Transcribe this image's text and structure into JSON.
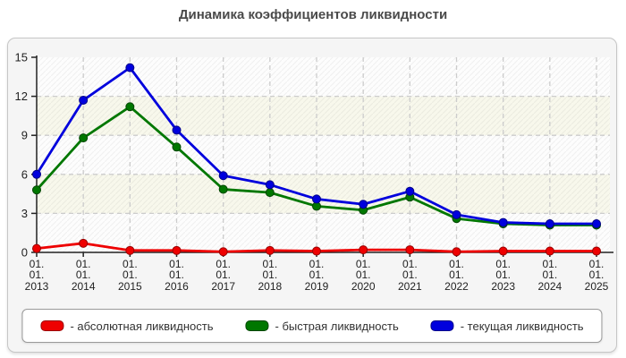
{
  "title": "Динамика коэффициентов ликвидности",
  "chart_data": {
    "type": "line",
    "x_tick_prefix_lines": [
      "01.",
      "01."
    ],
    "years": [
      "2013",
      "2014",
      "2015",
      "2016",
      "2017",
      "2018",
      "2019",
      "2020",
      "2021",
      "2022",
      "2023",
      "2024",
      "2025"
    ],
    "yticks": [
      0,
      3,
      6,
      9,
      12,
      15
    ],
    "ylim": [
      0,
      15
    ],
    "grid": true,
    "legend_position": "bottom",
    "plot_band_colors": {
      "even": "#fdfdfd",
      "odd": "#f8f8ec"
    },
    "gridline_color": "#cccccc",
    "axis_color": "#222222",
    "series": [
      {
        "name": "абсолютная ликвидность",
        "legend_label": "- абсолютная ликвидность",
        "color": "#ee0000",
        "marker_stroke": "#990000",
        "values": [
          0.3,
          0.7,
          0.15,
          0.15,
          0.05,
          0.15,
          0.1,
          0.2,
          0.2,
          0.05,
          0.1,
          0.1,
          0.1
        ]
      },
      {
        "name": "быстрая ликвидность",
        "legend_label": "- быстрая ликвидность",
        "color": "#007700",
        "marker_stroke": "#004400",
        "values": [
          4.8,
          8.8,
          11.2,
          8.1,
          4.85,
          4.6,
          3.55,
          3.25,
          4.25,
          2.6,
          2.2,
          2.1,
          2.1
        ]
      },
      {
        "name": "текущая ликвидность",
        "legend_label": "- текущая ликвидность",
        "color": "#0000dd",
        "marker_stroke": "#000088",
        "values": [
          6.0,
          11.7,
          14.2,
          9.4,
          5.9,
          5.2,
          4.1,
          3.7,
          4.7,
          2.9,
          2.3,
          2.2,
          2.2
        ]
      }
    ]
  }
}
